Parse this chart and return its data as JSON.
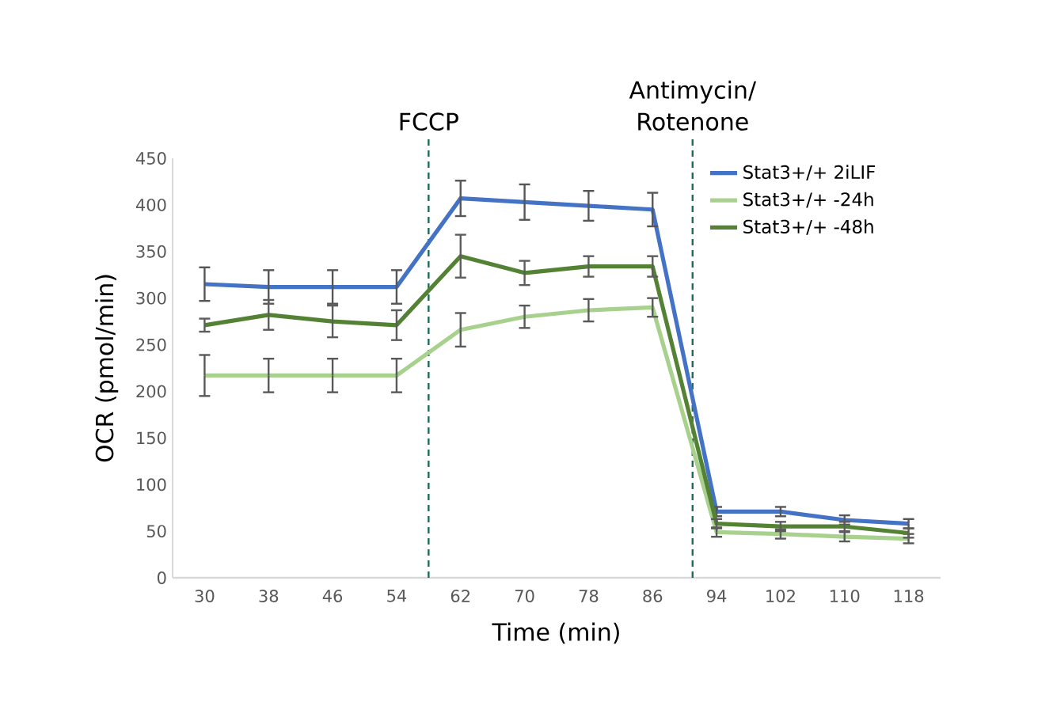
{
  "chart_data": {
    "type": "line",
    "xlabel": "Time (min)",
    "ylabel": "OCR (pmol/min)",
    "x": [
      30,
      38,
      46,
      54,
      62,
      70,
      78,
      86,
      94,
      102,
      110,
      118
    ],
    "xlim": [
      26,
      122
    ],
    "xticks": [
      30,
      38,
      46,
      54,
      62,
      70,
      78,
      86,
      94,
      102,
      110,
      118
    ],
    "ylim": [
      0,
      450
    ],
    "yticks": [
      0,
      50,
      100,
      150,
      200,
      250,
      300,
      350,
      400,
      450
    ],
    "series": [
      {
        "name": "Stat3+/+ 2iLIF",
        "color": "#4472c4",
        "values": [
          315,
          312,
          312,
          312,
          407,
          403,
          399,
          395,
          71,
          71,
          62,
          58
        ],
        "errors": [
          18,
          18,
          18,
          18,
          19,
          19,
          16,
          18,
          5,
          5,
          5,
          5
        ]
      },
      {
        "name": "Stat3+/+ -24h",
        "color": "#a9d18e",
        "values": [
          217,
          217,
          217,
          217,
          266,
          280,
          287,
          290,
          49,
          47,
          44,
          42
        ],
        "errors": [
          22,
          18,
          18,
          18,
          18,
          12,
          12,
          10,
          5,
          5,
          5,
          5
        ]
      },
      {
        "name": "Stat3+/+ -48h",
        "color": "#548235",
        "values": [
          271,
          282,
          275,
          271,
          345,
          327,
          334,
          334,
          58,
          55,
          55,
          48
        ],
        "errors": [
          7,
          16,
          17,
          16,
          23,
          13,
          11,
          11,
          5,
          5,
          5,
          5
        ]
      }
    ],
    "ref_lines": [
      {
        "axis": "x",
        "value": 58,
        "label": "FCCP",
        "color": "#1f6b5a",
        "line_style": "dashed"
      },
      {
        "axis": "x",
        "value": 91,
        "label": "Antimycin/ Rotenone",
        "color": "#1f6b5a",
        "line_style": "dashed"
      }
    ],
    "legend": "top right",
    "grid": false,
    "marker": "none",
    "line_style": "solid"
  }
}
